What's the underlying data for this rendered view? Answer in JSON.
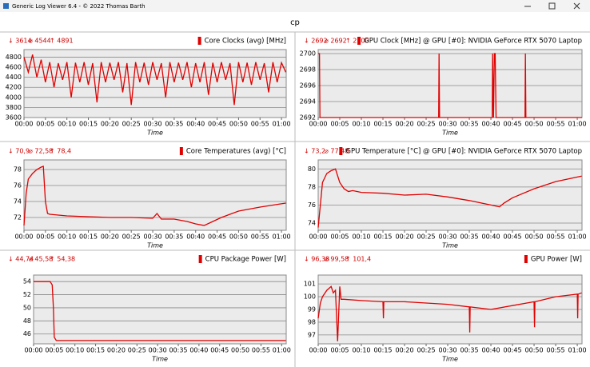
{
  "window": {
    "title": "Generic Log Viewer 6.4 - © 2022 Thomas Barth",
    "heading": "cp"
  },
  "chart_data": [
    {
      "type": "line",
      "title": "Core Clocks (avg) [MHz]",
      "stats": [
        "↓ 3614",
        "⌀ 4544",
        "↑ 4891"
      ],
      "xlabel": "Time",
      "color": "#e00000",
      "grid": true,
      "x": [
        0,
        1,
        2,
        3,
        4,
        5,
        6,
        7,
        8,
        9,
        10,
        11,
        12,
        13,
        14,
        15,
        16,
        17,
        18,
        19,
        20,
        21,
        22,
        23,
        24,
        25,
        26,
        27,
        28,
        29,
        30,
        31,
        32,
        33,
        34,
        35,
        36,
        37,
        38,
        39,
        40,
        41,
        42,
        43,
        44,
        45,
        46,
        47,
        48,
        49,
        50,
        51,
        52,
        53,
        54,
        55,
        56,
        57,
        58,
        59,
        60,
        61
      ],
      "values": [
        4800,
        4500,
        4850,
        4400,
        4750,
        4300,
        4700,
        4200,
        4680,
        4350,
        4700,
        4000,
        4690,
        4300,
        4700,
        4250,
        4680,
        3900,
        4700,
        4300,
        4690,
        4350,
        4700,
        4100,
        4680,
        3850,
        4700,
        4300,
        4690,
        4250,
        4700,
        4350,
        4680,
        4000,
        4700,
        4300,
        4690,
        4350,
        4700,
        4200,
        4680,
        4300,
        4700,
        4050,
        4690,
        4300,
        4700,
        4350,
        4680,
        3850,
        4700,
        4300,
        4690,
        4250,
        4700,
        4350,
        4680,
        4100,
        4700,
        4300,
        4690,
        4500
      ],
      "xlim": [
        0,
        61.1
      ],
      "ylim": [
        3600,
        4950
      ],
      "yticks": [
        3600,
        3800,
        4000,
        4200,
        4400,
        4600,
        4800
      ],
      "xticks": [
        {
          "value": 0,
          "label": "00:00"
        },
        {
          "value": 5,
          "label": "00:05"
        },
        {
          "value": 10,
          "label": "00:10"
        },
        {
          "value": 15,
          "label": "00:15"
        },
        {
          "value": 20,
          "label": "00:20"
        },
        {
          "value": 25,
          "label": "00:25"
        },
        {
          "value": 30,
          "label": "00:30"
        },
        {
          "value": 35,
          "label": "00:35"
        },
        {
          "value": 40,
          "label": "00:40"
        },
        {
          "value": 45,
          "label": "00:45"
        },
        {
          "value": 50,
          "label": "00:50"
        },
        {
          "value": 55,
          "label": "00:55"
        },
        {
          "value": 60,
          "label": "01:00"
        }
      ]
    },
    {
      "type": "line",
      "title": "GPU Clock [MHz] @ GPU [#0]: NVIDIA GeForce RTX 5070 Laptop",
      "stats": [
        "↓ 2692",
        "⌀ 2692",
        "↑ 2700"
      ],
      "xlabel": "Time",
      "color": "#e00000",
      "grid": true,
      "x": [
        0,
        0.3,
        0.4,
        27.9,
        28,
        28.1,
        40.3,
        40.4,
        40.6,
        40.8,
        41,
        41.2,
        47.9,
        48,
        48.1,
        61.1
      ],
      "values": [
        2700,
        2700,
        2692,
        2692,
        2700,
        2692,
        2692,
        2700,
        2692,
        2700,
        2700,
        2692,
        2692,
        2700,
        2692,
        2692
      ],
      "xlim": [
        0,
        61.1
      ],
      "ylim": [
        2692,
        2700.5
      ],
      "yticks": [
        2692,
        2694,
        2696,
        2698,
        2700
      ],
      "xticks": [
        {
          "value": 0,
          "label": "00:00"
        },
        {
          "value": 5,
          "label": "00:05"
        },
        {
          "value": 10,
          "label": "00:10"
        },
        {
          "value": 15,
          "label": "00:15"
        },
        {
          "value": 20,
          "label": "00:20"
        },
        {
          "value": 25,
          "label": "00:25"
        },
        {
          "value": 30,
          "label": "00:30"
        },
        {
          "value": 35,
          "label": "00:35"
        },
        {
          "value": 40,
          "label": "00:40"
        },
        {
          "value": 45,
          "label": "00:45"
        },
        {
          "value": 50,
          "label": "00:50"
        },
        {
          "value": 55,
          "label": "00:55"
        },
        {
          "value": 60,
          "label": "01:00"
        }
      ]
    },
    {
      "type": "line",
      "title": "Core Temperatures (avg) [°C]",
      "stats": [
        "↓ 70,9",
        "⌀ 72,58",
        "↑ 78,4"
      ],
      "xlabel": "Time",
      "color": "#e00000",
      "grid": true,
      "x": [
        0,
        0.5,
        1,
        2,
        3,
        4,
        4.5,
        5,
        5.5,
        6,
        8,
        10,
        15,
        20,
        25,
        30,
        31,
        32,
        35,
        38,
        40,
        42,
        44,
        46,
        50,
        55,
        61
      ],
      "values": [
        71,
        75,
        76.8,
        77.5,
        78,
        78.3,
        78.4,
        74,
        72.5,
        72.4,
        72.3,
        72.2,
        72.1,
        72,
        72,
        71.9,
        72.5,
        71.8,
        71.8,
        71.5,
        71.2,
        71,
        71.5,
        72,
        72.8,
        73.3,
        73.8
      ],
      "xlim": [
        0,
        61.1
      ],
      "ylim": [
        70.4,
        79.2
      ],
      "yticks": [
        72,
        74,
        76,
        78
      ],
      "xticks": [
        {
          "value": 0,
          "label": "00:00"
        },
        {
          "value": 5,
          "label": "00:05"
        },
        {
          "value": 10,
          "label": "00:10"
        },
        {
          "value": 15,
          "label": "00:15"
        },
        {
          "value": 20,
          "label": "00:20"
        },
        {
          "value": 25,
          "label": "00:25"
        },
        {
          "value": 30,
          "label": "00:30"
        },
        {
          "value": 35,
          "label": "00:35"
        },
        {
          "value": 40,
          "label": "00:40"
        },
        {
          "value": 45,
          "label": "00:45"
        },
        {
          "value": 50,
          "label": "00:50"
        },
        {
          "value": 55,
          "label": "00:55"
        },
        {
          "value": 60,
          "label": "01:00"
        }
      ]
    },
    {
      "type": "line",
      "title": "GPU Temperature [°C] @ GPU [#0]: NVIDIA GeForce RTX 5070 Laptop",
      "stats": [
        "↓ 73,2",
        "⌀ 77,48",
        "↑"
      ],
      "xlabel": "Time",
      "color": "#e00000",
      "grid": true,
      "x": [
        0,
        0.5,
        1,
        2,
        3,
        4,
        5,
        6,
        7,
        8,
        10,
        15,
        20,
        25,
        30,
        35,
        40,
        42,
        43,
        45,
        50,
        55,
        61
      ],
      "values": [
        73.5,
        76,
        78.5,
        79.5,
        79.8,
        80,
        78.5,
        77.8,
        77.5,
        77.6,
        77.4,
        77.3,
        77.1,
        77.2,
        76.9,
        76.5,
        76,
        75.8,
        76.2,
        76.8,
        77.8,
        78.6,
        79.2
      ],
      "xlim": [
        0,
        61.1
      ],
      "ylim": [
        73.2,
        81
      ],
      "yticks": [
        74,
        76,
        78,
        80
      ],
      "xticks": [
        {
          "value": 0,
          "label": "00:00"
        },
        {
          "value": 5,
          "label": "00:05"
        },
        {
          "value": 10,
          "label": "00:10"
        },
        {
          "value": 15,
          "label": "00:15"
        },
        {
          "value": 20,
          "label": "00:20"
        },
        {
          "value": 25,
          "label": "00:25"
        },
        {
          "value": 30,
          "label": "00:30"
        },
        {
          "value": 35,
          "label": "00:35"
        },
        {
          "value": 40,
          "label": "00:40"
        },
        {
          "value": 45,
          "label": "00:45"
        },
        {
          "value": 50,
          "label": "00:50"
        },
        {
          "value": 55,
          "label": "00:55"
        },
        {
          "value": 60,
          "label": "01:00"
        }
      ]
    },
    {
      "type": "line",
      "title": "CPU Package Power [W]",
      "stats": [
        "↓ 44,74",
        "⌀ 45,58",
        "↑ 54,38"
      ],
      "xlabel": "Time",
      "color": "#e00000",
      "grid": true,
      "x": [
        0,
        1,
        2,
        3,
        4,
        4.5,
        4.8,
        5,
        5.5,
        10,
        20,
        30,
        40,
        50,
        61
      ],
      "values": [
        54,
        54,
        54,
        54,
        54,
        53.5,
        50,
        45.5,
        45,
        45,
        45,
        45,
        45,
        45,
        45
      ],
      "xlim": [
        0,
        61.1
      ],
      "ylim": [
        44.5,
        55
      ],
      "yticks": [
        46,
        48,
        50,
        52,
        54
      ],
      "xticks": [
        {
          "value": 0,
          "label": "00:00"
        },
        {
          "value": 5,
          "label": "00:05"
        },
        {
          "value": 10,
          "label": "00:10"
        },
        {
          "value": 15,
          "label": "00:15"
        },
        {
          "value": 20,
          "label": "00:20"
        },
        {
          "value": 25,
          "label": "00:25"
        },
        {
          "value": 30,
          "label": "00:30"
        },
        {
          "value": 35,
          "label": "00:35"
        },
        {
          "value": 40,
          "label": "00:40"
        },
        {
          "value": 45,
          "label": "00:45"
        },
        {
          "value": 50,
          "label": "00:50"
        },
        {
          "value": 55,
          "label": "00:55"
        },
        {
          "value": 60,
          "label": "01:00"
        }
      ]
    },
    {
      "type": "line",
      "title": "GPU Power [W]",
      "stats": [
        "↓ 96,38",
        "⌀ 99,58",
        "↑ 101,4"
      ],
      "xlabel": "Time",
      "color": "#e00000",
      "grid": true,
      "x": [
        0,
        0.5,
        1,
        2,
        3,
        3.5,
        4,
        4.5,
        5,
        5.3,
        6,
        10,
        15,
        15.1,
        15.2,
        20,
        25,
        30,
        35,
        35.1,
        35.2,
        40,
        45,
        50,
        50.1,
        50.2,
        55,
        60,
        60.1,
        60.2,
        61
      ],
      "values": [
        98.3,
        99.5,
        100,
        100.5,
        100.8,
        100.3,
        100.5,
        96.5,
        100.8,
        99.8,
        99.8,
        99.7,
        99.6,
        98.3,
        99.6,
        99.6,
        99.5,
        99.4,
        99.2,
        97.2,
        99.2,
        99.0,
        99.3,
        99.6,
        97.6,
        99.6,
        100,
        100.2,
        98.3,
        100.2,
        100.3
      ],
      "xlim": [
        0,
        61.1
      ],
      "ylim": [
        96.3,
        101.7
      ],
      "yticks": [
        97,
        98,
        99,
        100,
        101
      ],
      "xticks": [
        {
          "value": 0,
          "label": "00:00"
        },
        {
          "value": 5,
          "label": "00:05"
        },
        {
          "value": 10,
          "label": "00:10"
        },
        {
          "value": 15,
          "label": "00:15"
        },
        {
          "value": 20,
          "label": "00:20"
        },
        {
          "value": 25,
          "label": "00:25"
        },
        {
          "value": 30,
          "label": "00:30"
        },
        {
          "value": 35,
          "label": "00:35"
        },
        {
          "value": 40,
          "label": "00:40"
        },
        {
          "value": 45,
          "label": "00:45"
        },
        {
          "value": 50,
          "label": "00:50"
        },
        {
          "value": 55,
          "label": "00:55"
        },
        {
          "value": 60,
          "label": "01:00"
        }
      ]
    }
  ]
}
